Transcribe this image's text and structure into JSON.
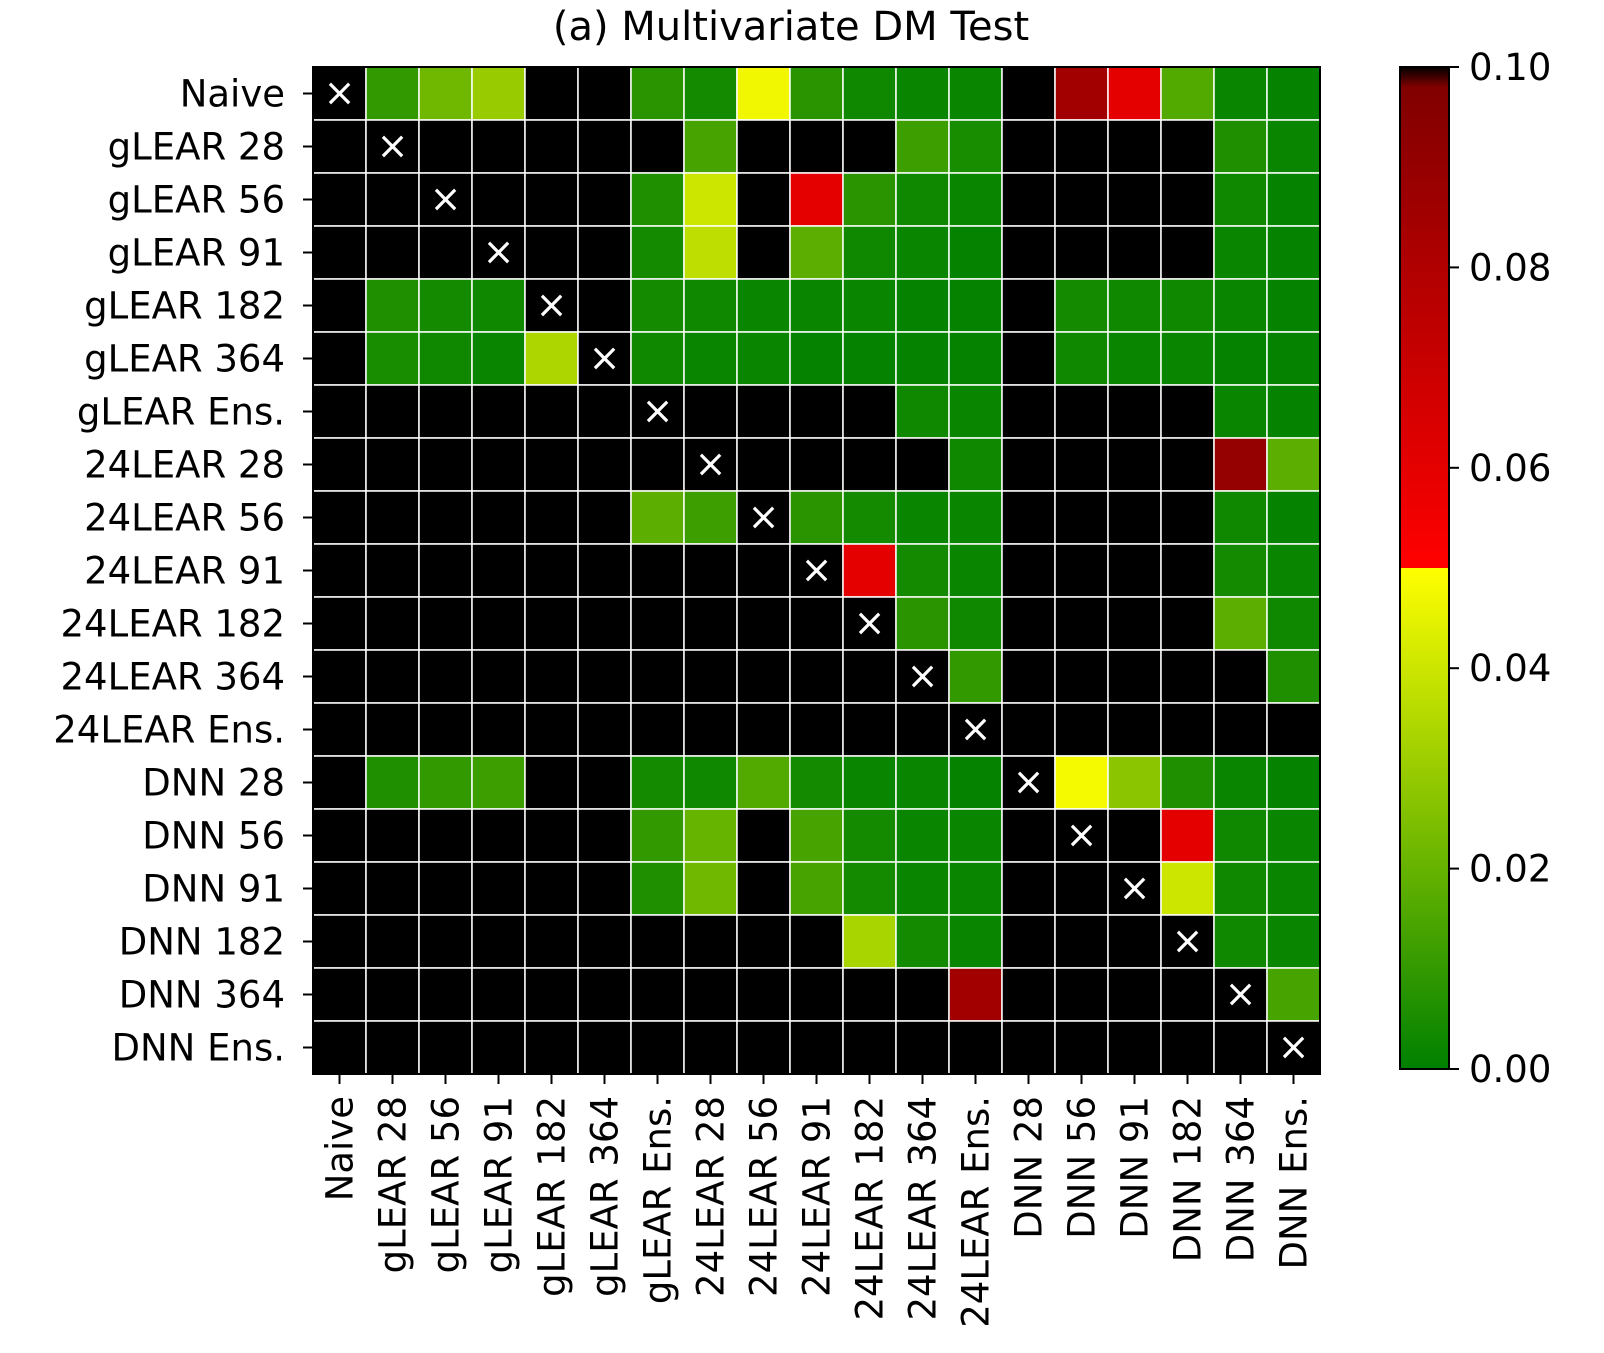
{
  "chart_data": {
    "type": "heatmap",
    "title": "(a) Multivariate DM Test",
    "xlabel": "",
    "ylabel": "",
    "labels": [
      "Naive",
      "gLEAR 28",
      "gLEAR 56",
      "gLEAR 91",
      "gLEAR 182",
      "gLEAR 364",
      "gLEAR Ens.",
      "24LEAR 28",
      "24LEAR 56",
      "24LEAR 91",
      "24LEAR 182",
      "24LEAR 364",
      "24LEAR Ens.",
      "DNN 28",
      "DNN 56",
      "DNN 91",
      "DNN 182",
      "DNN 364",
      "DNN Ens."
    ],
    "values": [
      [
        null,
        0.01,
        0.022,
        0.03,
        0.1,
        0.1,
        0.008,
        0.004,
        0.047,
        0.008,
        0.003,
        0.002,
        0.002,
        0.1,
        0.085,
        0.06,
        0.016,
        0.002,
        0.001
      ],
      [
        0.1,
        null,
        0.1,
        0.1,
        0.1,
        0.1,
        0.1,
        0.014,
        0.1,
        0.1,
        0.1,
        0.012,
        0.005,
        0.1,
        0.1,
        0.1,
        0.1,
        0.006,
        0.002
      ],
      [
        0.1,
        0.1,
        null,
        0.1,
        0.1,
        0.1,
        0.006,
        0.04,
        0.1,
        0.06,
        0.008,
        0.003,
        0.002,
        0.1,
        0.1,
        0.1,
        0.1,
        0.003,
        0.001
      ],
      [
        0.1,
        0.1,
        0.1,
        null,
        0.1,
        0.1,
        0.004,
        0.037,
        0.1,
        0.018,
        0.003,
        0.002,
        0.001,
        0.1,
        0.1,
        0.1,
        0.1,
        0.002,
        0.001
      ],
      [
        0.1,
        0.006,
        0.004,
        0.003,
        null,
        0.1,
        0.004,
        0.003,
        0.002,
        0.002,
        0.002,
        0.001,
        0.001,
        0.1,
        0.004,
        0.003,
        0.003,
        0.002,
        0.001
      ],
      [
        0.1,
        0.005,
        0.003,
        0.002,
        0.034,
        null,
        0.003,
        0.002,
        0.002,
        0.001,
        0.001,
        0.001,
        0.001,
        0.1,
        0.003,
        0.002,
        0.002,
        0.001,
        0.001
      ],
      [
        0.1,
        0.1,
        0.1,
        0.1,
        0.1,
        0.1,
        null,
        0.1,
        0.1,
        0.1,
        0.1,
        0.003,
        0.002,
        0.1,
        0.1,
        0.1,
        0.1,
        0.002,
        0.001
      ],
      [
        0.1,
        0.1,
        0.1,
        0.1,
        0.1,
        0.1,
        0.1,
        null,
        0.1,
        0.1,
        0.1,
        0.1,
        0.003,
        0.1,
        0.1,
        0.1,
        0.1,
        0.09,
        0.018
      ],
      [
        0.1,
        0.1,
        0.1,
        0.1,
        0.1,
        0.1,
        0.018,
        0.012,
        null,
        0.008,
        0.004,
        0.002,
        0.002,
        0.1,
        0.1,
        0.1,
        0.1,
        0.003,
        0.001
      ],
      [
        0.1,
        0.1,
        0.1,
        0.1,
        0.1,
        0.1,
        0.1,
        0.1,
        0.1,
        null,
        0.06,
        0.004,
        0.002,
        0.1,
        0.1,
        0.1,
        0.1,
        0.004,
        0.002
      ],
      [
        0.1,
        0.1,
        0.1,
        0.1,
        0.1,
        0.1,
        0.1,
        0.1,
        0.1,
        0.1,
        null,
        0.008,
        0.003,
        0.1,
        0.1,
        0.1,
        0.1,
        0.018,
        0.003
      ],
      [
        0.1,
        0.1,
        0.1,
        0.1,
        0.1,
        0.1,
        0.1,
        0.1,
        0.1,
        0.1,
        0.1,
        null,
        0.01,
        0.1,
        0.1,
        0.1,
        0.1,
        0.1,
        0.006
      ],
      [
        0.1,
        0.1,
        0.1,
        0.1,
        0.1,
        0.1,
        0.1,
        0.1,
        0.1,
        0.1,
        0.1,
        0.1,
        null,
        0.1,
        0.1,
        0.1,
        0.1,
        0.1,
        0.1
      ],
      [
        0.1,
        0.006,
        0.01,
        0.012,
        0.1,
        0.1,
        0.004,
        0.003,
        0.016,
        0.004,
        0.002,
        0.002,
        0.001,
        null,
        0.048,
        0.027,
        0.006,
        0.002,
        0.001
      ],
      [
        0.1,
        0.1,
        0.1,
        0.1,
        0.1,
        0.1,
        0.01,
        0.02,
        0.1,
        0.014,
        0.004,
        0.002,
        0.002,
        0.1,
        null,
        0.1,
        0.06,
        0.003,
        0.002
      ],
      [
        0.1,
        0.1,
        0.1,
        0.1,
        0.1,
        0.1,
        0.006,
        0.022,
        0.1,
        0.014,
        0.004,
        0.002,
        0.002,
        0.1,
        0.1,
        null,
        0.04,
        0.003,
        0.002
      ],
      [
        0.1,
        0.1,
        0.1,
        0.1,
        0.1,
        0.1,
        0.1,
        0.1,
        0.1,
        0.1,
        0.033,
        0.004,
        0.002,
        0.1,
        0.1,
        0.1,
        null,
        0.003,
        0.002
      ],
      [
        0.1,
        0.1,
        0.1,
        0.1,
        0.1,
        0.1,
        0.1,
        0.1,
        0.1,
        0.1,
        0.1,
        0.1,
        0.085,
        0.1,
        0.1,
        0.1,
        0.1,
        null,
        0.014
      ],
      [
        0.1,
        0.1,
        0.1,
        0.1,
        0.1,
        0.1,
        0.1,
        0.1,
        0.1,
        0.1,
        0.1,
        0.1,
        0.1,
        0.1,
        0.1,
        0.1,
        0.1,
        0.1,
        null
      ]
    ],
    "vlim": [
      0,
      0.1
    ],
    "colorbar": {
      "ticks": [
        "0.00",
        "0.02",
        "0.04",
        "0.06",
        "0.08",
        "0.10"
      ],
      "gradient": [
        {
          "v": 0.0,
          "color": "#008000"
        },
        {
          "v": 0.05,
          "color": "#ffff00"
        },
        {
          "v": 0.05,
          "color": "#ff0000"
        },
        {
          "v": 0.098,
          "color": "#800000"
        },
        {
          "v": 0.1,
          "color": "#000000"
        }
      ]
    },
    "diagonal_marker": "×",
    "grid": true,
    "grid_color": "#ffffff",
    "legend": "colorbar-right"
  }
}
